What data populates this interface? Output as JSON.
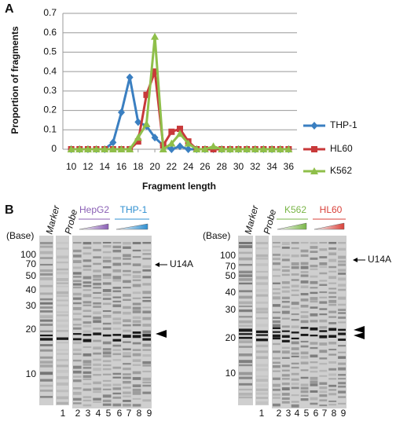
{
  "chart_data": {
    "type": "line",
    "panel_label": "A",
    "x_label": "Fragment length",
    "y_label": "Proportion of fragments",
    "x": [
      10,
      11,
      12,
      13,
      14,
      15,
      16,
      17,
      18,
      19,
      20,
      21,
      22,
      23,
      24,
      25,
      26,
      27,
      28,
      29,
      30,
      31,
      32,
      33,
      34,
      35,
      36
    ],
    "series": [
      {
        "name": "THP-1",
        "color": "#3a7fc1",
        "marker": "diamond",
        "values": [
          0,
          0,
          0,
          0,
          0,
          0.035,
          0.19,
          0.37,
          0.14,
          0.12,
          0.06,
          0.02,
          0,
          0.015,
          0,
          0,
          0,
          0,
          0,
          0,
          0,
          0,
          0,
          0,
          0,
          0,
          0
        ]
      },
      {
        "name": "HL60",
        "color": "#c8393a",
        "marker": "square",
        "values": [
          0,
          0,
          0,
          0,
          0,
          0,
          0,
          0,
          0.04,
          0.28,
          0.4,
          0.02,
          0.09,
          0.105,
          0.04,
          0,
          0,
          0,
          0,
          0,
          0,
          0,
          0,
          0,
          0,
          0,
          0
        ]
      },
      {
        "name": "K562",
        "color": "#8fbf4a",
        "marker": "triangle",
        "values": [
          0,
          0,
          0,
          0,
          0,
          0,
          0,
          0,
          0.06,
          0.13,
          0.58,
          0,
          0.03,
          0.08,
          0.03,
          0,
          0,
          0.015,
          0,
          0,
          0,
          0,
          0,
          0,
          0,
          0,
          0
        ]
      }
    ],
    "xlim": [
      9,
      37
    ],
    "xticks": [
      10,
      12,
      14,
      16,
      18,
      20,
      22,
      24,
      26,
      28,
      30,
      32,
      34,
      36
    ],
    "ylim": [
      0,
      0.7
    ],
    "yticks": [
      0,
      0.1,
      0.2,
      0.3,
      0.4,
      0.5,
      0.6,
      0.7
    ],
    "grid": true,
    "legend": "right"
  },
  "panel_b": {
    "label": "B",
    "gels": [
      {
        "base_label": "(Base)",
        "sizes": [
          "100",
          "70",
          "50",
          "40",
          "30",
          "20",
          "10"
        ],
        "lane_titles": [
          "Marker",
          "Probe"
        ],
        "groups": [
          "HepG2",
          "THP-1"
        ],
        "lane_numbers": [
          "1",
          "2",
          "3",
          "4",
          "5",
          "6",
          "7",
          "8",
          "9"
        ],
        "band_label": "U14A"
      },
      {
        "base_label": "(Base)",
        "sizes": [
          "100",
          "70",
          "50",
          "40",
          "30",
          "20",
          "10"
        ],
        "lane_titles": [
          "Marker",
          "Probe"
        ],
        "groups": [
          "K562",
          "HL60"
        ],
        "lane_numbers": [
          "1",
          "2",
          "3",
          "4",
          "5",
          "6",
          "7",
          "8",
          "9"
        ],
        "band_label": "U14A"
      }
    ]
  }
}
